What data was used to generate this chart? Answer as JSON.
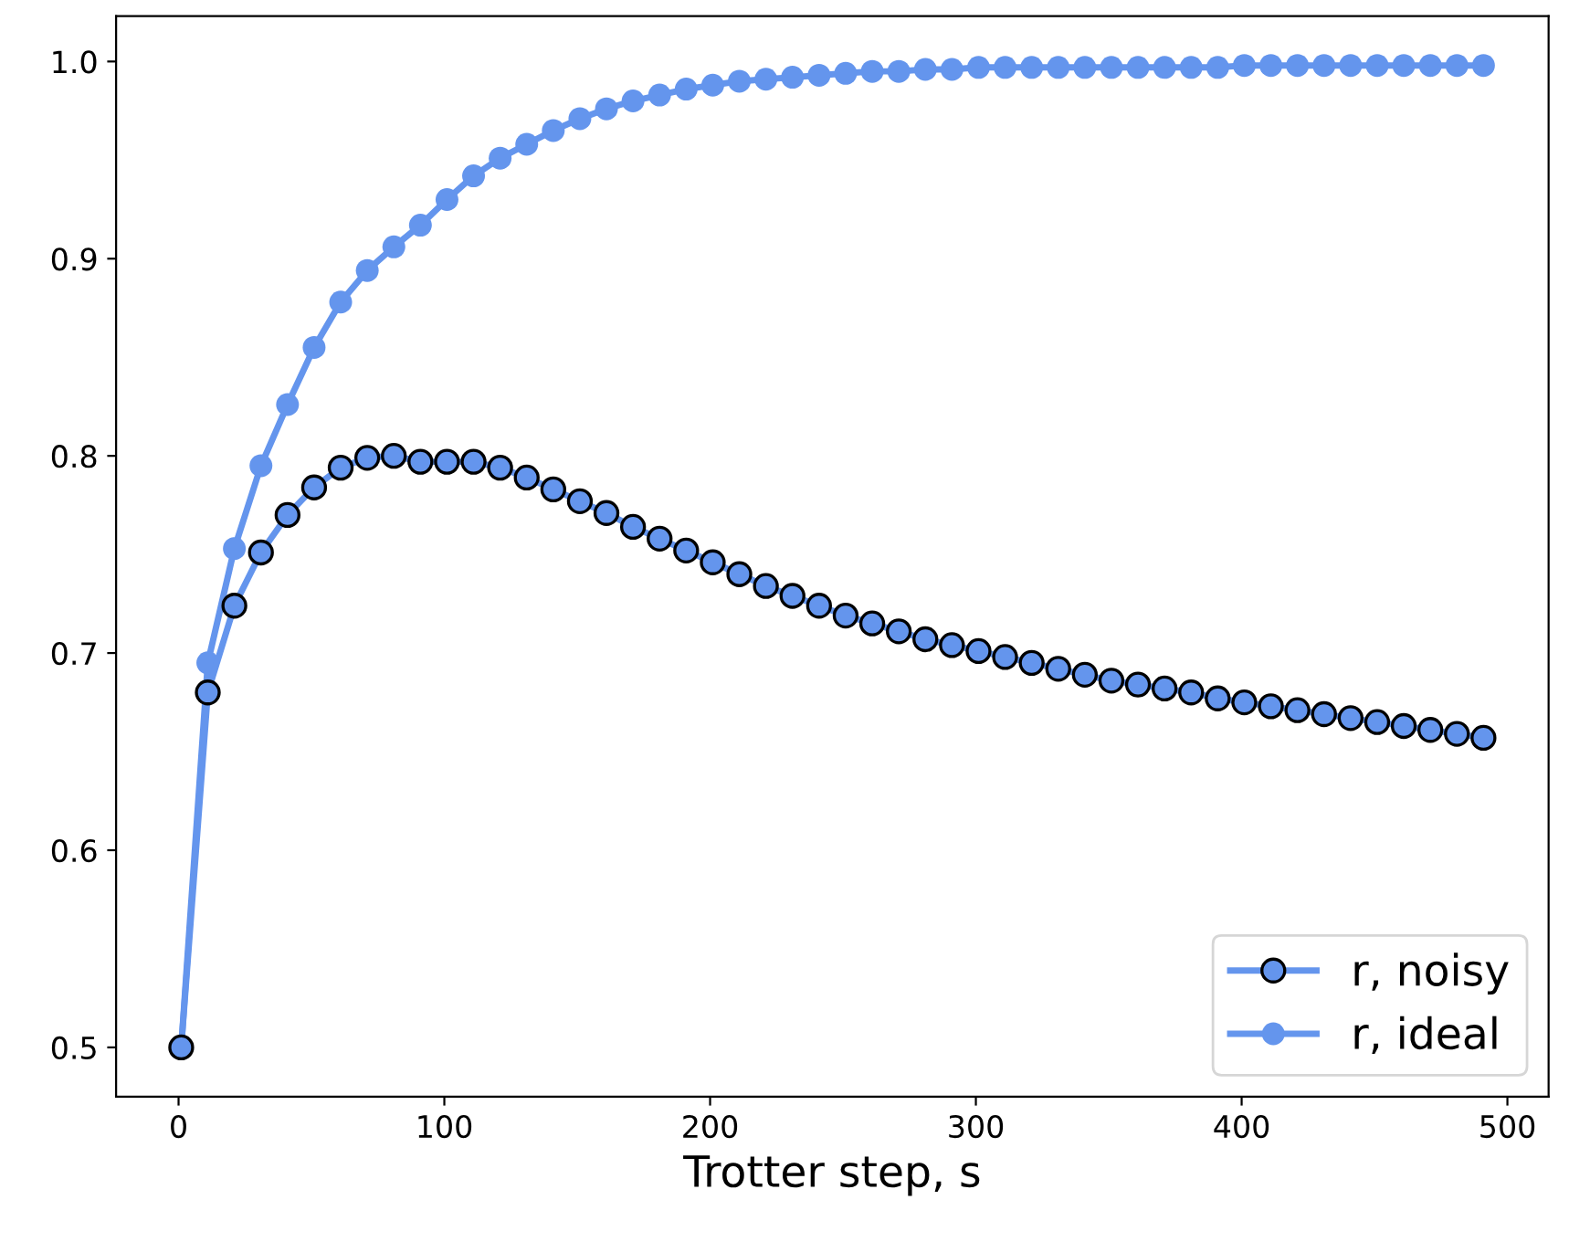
{
  "chart_data": {
    "type": "line",
    "xlabel": "Trotter step, s",
    "x": [
      1,
      11,
      21,
      31,
      41,
      51,
      61,
      71,
      81,
      91,
      101,
      111,
      121,
      131,
      141,
      151,
      161,
      171,
      181,
      191,
      201,
      211,
      221,
      231,
      241,
      251,
      261,
      271,
      281,
      291,
      301,
      311,
      321,
      331,
      341,
      351,
      361,
      371,
      381,
      391,
      401,
      411,
      421,
      431,
      441,
      451,
      461,
      471,
      481,
      491
    ],
    "series": [
      {
        "name": "r, noisy",
        "color": "#6495ed",
        "values": [
          0.5,
          0.68,
          0.724,
          0.751,
          0.77,
          0.784,
          0.794,
          0.799,
          0.8,
          0.797,
          0.797,
          0.797,
          0.794,
          0.789,
          0.783,
          0.777,
          0.771,
          0.764,
          0.758,
          0.752,
          0.746,
          0.74,
          0.734,
          0.729,
          0.724,
          0.719,
          0.715,
          0.711,
          0.707,
          0.704,
          0.701,
          0.698,
          0.695,
          0.692,
          0.689,
          0.686,
          0.684,
          0.682,
          0.68,
          0.677,
          0.675,
          0.673,
          0.671,
          0.669,
          0.667,
          0.665,
          0.663,
          0.661,
          0.659,
          0.657
        ]
      },
      {
        "name": "r, ideal",
        "color": "#6495ed",
        "values": [
          0.5,
          0.695,
          0.753,
          0.795,
          0.826,
          0.855,
          0.878,
          0.894,
          0.906,
          0.917,
          0.93,
          0.942,
          0.951,
          0.958,
          0.965,
          0.971,
          0.976,
          0.98,
          0.983,
          0.986,
          0.988,
          0.99,
          0.991,
          0.992,
          0.993,
          0.994,
          0.995,
          0.995,
          0.996,
          0.996,
          0.997,
          0.997,
          0.997,
          0.997,
          0.997,
          0.997,
          0.997,
          0.997,
          0.997,
          0.997,
          0.998,
          0.998,
          0.998,
          0.998,
          0.998,
          0.998,
          0.998,
          0.998,
          0.998,
          0.998
        ]
      }
    ],
    "xlim": [
      -23.5,
      515.5
    ],
    "ylim": [
      0.475,
      1.023
    ],
    "xticks": [
      0,
      100,
      200,
      300,
      400,
      500
    ],
    "yticks": [
      0.5,
      0.6,
      0.7,
      0.8,
      0.9,
      {
        "value": 1,
        "label": "1.0"
      }
    ],
    "marker": "circle",
    "line_style": "solid",
    "grid": false,
    "legend": "bottom right"
  }
}
